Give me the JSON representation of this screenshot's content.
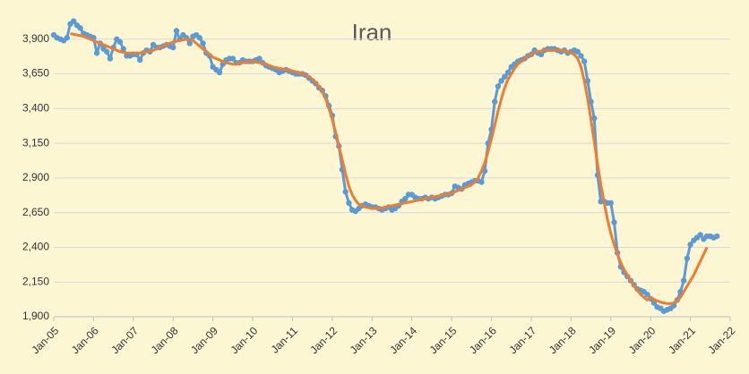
{
  "chart_data": {
    "type": "line",
    "title": "Iran",
    "categories": [
      "Jan-05",
      null,
      null,
      null,
      null,
      null,
      null,
      null,
      null,
      null,
      null,
      null,
      "Jan-06",
      null,
      null,
      null,
      null,
      null,
      null,
      null,
      null,
      null,
      null,
      null,
      "Jan-07",
      null,
      null,
      null,
      null,
      null,
      null,
      null,
      null,
      null,
      null,
      null,
      "Jan-08",
      null,
      null,
      null,
      null,
      null,
      null,
      null,
      null,
      null,
      null,
      null,
      "Jan-09",
      null,
      null,
      null,
      null,
      null,
      null,
      null,
      null,
      null,
      null,
      null,
      "Jan-10",
      null,
      null,
      null,
      null,
      null,
      null,
      null,
      null,
      null,
      null,
      null,
      "Jan-11",
      null,
      null,
      null,
      null,
      null,
      null,
      null,
      null,
      null,
      null,
      null,
      "Jan-12",
      null,
      null,
      null,
      null,
      null,
      null,
      null,
      null,
      null,
      null,
      null,
      "Jan-13",
      null,
      null,
      null,
      null,
      null,
      null,
      null,
      null,
      null,
      null,
      null,
      "Jan-14",
      null,
      null,
      null,
      null,
      null,
      null,
      null,
      null,
      null,
      null,
      null,
      "Jan-15",
      null,
      null,
      null,
      null,
      null,
      null,
      null,
      null,
      null,
      null,
      null,
      "Jan-16",
      null,
      null,
      null,
      null,
      null,
      null,
      null,
      null,
      null,
      null,
      null,
      "Jan-17",
      null,
      null,
      null,
      null,
      null,
      null,
      null,
      null,
      null,
      null,
      null,
      "Jan-18",
      null,
      null,
      null,
      null,
      null,
      null,
      null,
      null,
      null,
      null,
      null,
      "Jan-19",
      null,
      null,
      null,
      null,
      null,
      null,
      null,
      null,
      null,
      null,
      null,
      "Jan-20",
      null,
      null,
      null,
      null,
      null,
      null,
      null,
      null,
      null,
      null,
      null,
      "Jan-21",
      null,
      null,
      null,
      null,
      null,
      null,
      null,
      null,
      null,
      null,
      null,
      "Jan-22"
    ],
    "series": [
      {
        "color": "#5b9bd5",
        "markers": true,
        "values": [
          3930,
          3910,
          3900,
          3890,
          3910,
          4010,
          4030,
          4000,
          3980,
          3940,
          3930,
          3920,
          3910,
          3800,
          3870,
          3830,
          3810,
          3760,
          3840,
          3900,
          3880,
          3830,
          3780,
          3780,
          3790,
          3790,
          3750,
          3800,
          3820,
          3810,
          3860,
          3840,
          3840,
          3850,
          3860,
          3850,
          3840,
          3960,
          3900,
          3930,
          3910,
          3870,
          3920,
          3930,
          3910,
          3870,
          3800,
          3780,
          3700,
          3680,
          3660,
          3720,
          3750,
          3760,
          3760,
          3730,
          3730,
          3750,
          3740,
          3740,
          3740,
          3750,
          3760,
          3730,
          3710,
          3700,
          3690,
          3680,
          3660,
          3670,
          3680,
          3670,
          3660,
          3650,
          3650,
          3650,
          3640,
          3620,
          3600,
          3580,
          3550,
          3530,
          3490,
          3420,
          3350,
          3200,
          3130,
          2960,
          2800,
          2720,
          2670,
          2660,
          2680,
          2700,
          2710,
          2700,
          2690,
          2690,
          2680,
          2670,
          2680,
          2690,
          2670,
          2680,
          2700,
          2730,
          2750,
          2780,
          2780,
          2760,
          2750,
          2750,
          2760,
          2750,
          2760,
          2750,
          2760,
          2770,
          2780,
          2780,
          2790,
          2840,
          2830,
          2820,
          2850,
          2860,
          2870,
          2880,
          2880,
          2870,
          2950,
          3150,
          3250,
          3450,
          3560,
          3600,
          3630,
          3660,
          3700,
          3720,
          3740,
          3750,
          3760,
          3780,
          3790,
          3820,
          3800,
          3790,
          3820,
          3830,
          3830,
          3830,
          3820,
          3810,
          3820,
          3800,
          3810,
          3820,
          3810,
          3780,
          3740,
          3600,
          3450,
          3330,
          2920,
          2730,
          2730,
          2720,
          2720,
          2580,
          2360,
          2260,
          2220,
          2190,
          2160,
          2130,
          2100,
          2090,
          2080,
          2060,
          2030,
          2000,
          1970,
          1960,
          1940,
          1950,
          1960,
          1980,
          2020,
          2080,
          2160,
          2320,
          2420,
          2450,
          2470,
          2490,
          2460,
          2480,
          2480,
          2470,
          2480,
          null,
          null,
          null,
          null
        ]
      },
      {
        "color": "#ed7d31",
        "markers": false,
        "values": [
          null,
          null,
          null,
          null,
          null,
          3940,
          3935,
          3930,
          3925,
          3920,
          3910,
          3900,
          3890,
          3880,
          3870,
          3860,
          3850,
          3840,
          3830,
          3820,
          3810,
          3805,
          3800,
          3800,
          3800,
          3800,
          3800,
          3805,
          3810,
          3815,
          3820,
          3830,
          3840,
          3850,
          3860,
          3870,
          3880,
          3885,
          3890,
          3895,
          3900,
          3900,
          3890,
          3870,
          3850,
          3830,
          3810,
          3790,
          3770,
          3760,
          3750,
          3740,
          3730,
          3725,
          3720,
          3720,
          3725,
          3730,
          3735,
          3740,
          3740,
          3735,
          3730,
          3725,
          3720,
          3710,
          3700,
          3695,
          3690,
          3685,
          3680,
          3675,
          3670,
          3665,
          3660,
          3650,
          3640,
          3630,
          3610,
          3590,
          3560,
          3520,
          3470,
          3400,
          3320,
          3230,
          3130,
          3030,
          2930,
          2840,
          2780,
          2740,
          2710,
          2700,
          2690,
          2685,
          2680,
          2680,
          2680,
          2685,
          2690,
          2695,
          2700,
          2705,
          2710,
          2715,
          2720,
          2725,
          2730,
          2735,
          2740,
          2745,
          2750,
          2755,
          2760,
          2765,
          2770,
          2775,
          2780,
          2785,
          2790,
          2800,
          2810,
          2820,
          2830,
          2840,
          2850,
          2870,
          2900,
          2950,
          3010,
          3090,
          3180,
          3280,
          3380,
          3470,
          3550,
          3610,
          3650,
          3690,
          3720,
          3740,
          3760,
          3780,
          3790,
          3800,
          3810,
          3815,
          3820,
          3820,
          3820,
          3820,
          3820,
          3820,
          3815,
          3810,
          3800,
          3790,
          3760,
          3700,
          3600,
          3470,
          3320,
          3160,
          3000,
          2850,
          2720,
          2600,
          2500,
          2420,
          2350,
          2290,
          2240,
          2200,
          2160,
          2120,
          2090,
          2060,
          2040,
          2020,
          2040,
          2025,
          2015,
          2005,
          2000,
          1995,
          1995,
          2000,
          2015,
          2040,
          2080,
          2120,
          2160,
          2200,
          2250,
          2300,
          2350,
          2400,
          null,
          null,
          null,
          null,
          null,
          null,
          null
        ]
      }
    ],
    "ylim": [
      1900,
      4150
    ],
    "yticks": [
      {
        "value": 1900,
        "label": "1,900"
      },
      {
        "value": 2150,
        "label": "2,150"
      },
      {
        "value": 2400,
        "label": "2,400"
      },
      {
        "value": 2650,
        "label": "2,650"
      },
      {
        "value": 2900,
        "label": "2,900"
      },
      {
        "value": 3150,
        "label": "3,150"
      },
      {
        "value": 3400,
        "label": "3,400"
      },
      {
        "value": 3650,
        "label": "3,650"
      },
      {
        "value": 3900,
        "label": "3,900"
      }
    ],
    "grid": true
  }
}
